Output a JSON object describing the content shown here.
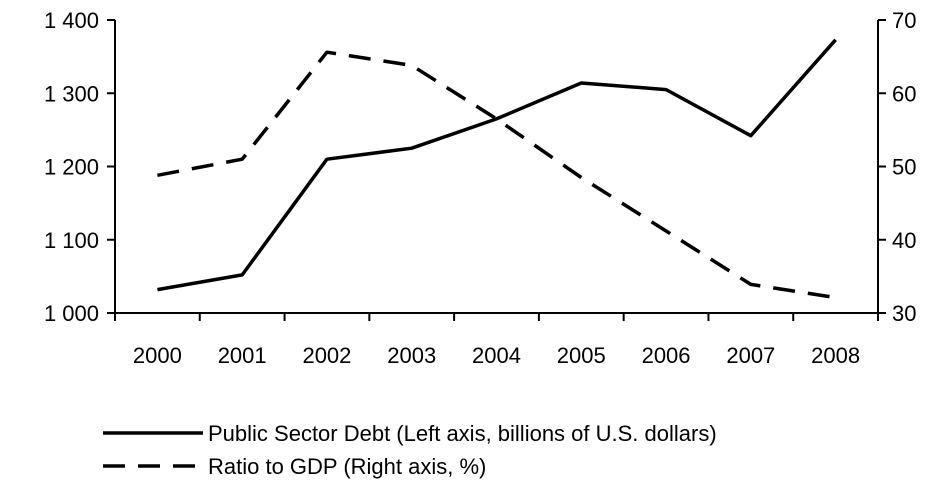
{
  "chart_data": {
    "type": "line",
    "categories": [
      "2000",
      "2001",
      "2002",
      "2003",
      "2004",
      "2005",
      "2006",
      "2007",
      "2008"
    ],
    "left_axis": {
      "ylim": [
        1000,
        1400
      ],
      "ticks": [
        1000,
        1100,
        1200,
        1300,
        1400
      ],
      "tick_labels": [
        "1 000",
        "1 100",
        "1 200",
        "1 300",
        "1 400"
      ]
    },
    "right_axis": {
      "ylim": [
        30,
        70
      ],
      "ticks": [
        30,
        40,
        50,
        60,
        70
      ],
      "tick_labels": [
        "30",
        "40",
        "50",
        "60",
        "70"
      ]
    },
    "series": [
      {
        "name": "Public Sector Debt (Left axis, billions of U.S. dollars)",
        "axis": "left",
        "style": "solid",
        "values": [
          1032,
          1052,
          1210,
          1225,
          1265,
          1314,
          1305,
          1242,
          1373
        ]
      },
      {
        "name": "Ratio to GDP (Right axis, %)",
        "axis": "right",
        "style": "dashed",
        "values": [
          48.8,
          51,
          65.6,
          63.8,
          56.5,
          48.5,
          41.2,
          33.9,
          32.1
        ]
      }
    ],
    "grid": false,
    "legend_position": "bottom",
    "colors": {
      "lines": "#000000",
      "background": "#ffffff"
    }
  }
}
